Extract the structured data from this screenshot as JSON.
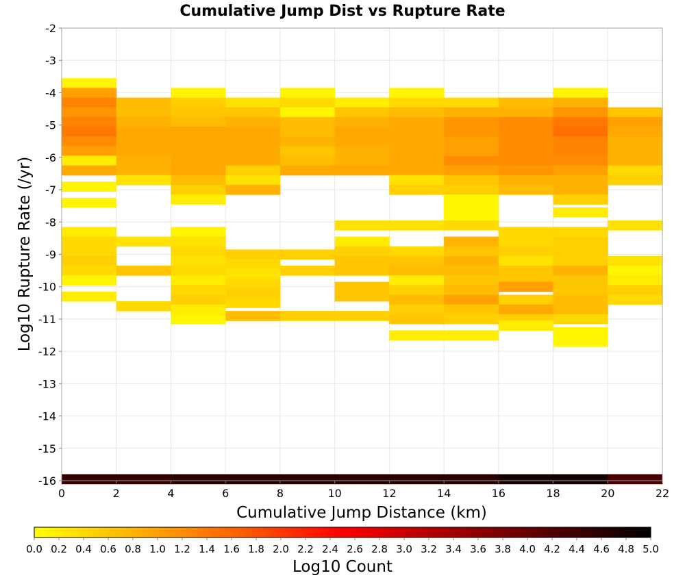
{
  "chart_data": {
    "type": "heatmap",
    "title": "Cumulative Jump Dist vs Rupture Rate",
    "xlabel": "Cumulative Jump Distance (km)",
    "ylabel": "Log10 Rupture Rate (/yr)",
    "xlim": [
      0,
      22
    ],
    "ylim": [
      -16,
      -2
    ],
    "x_ticks": [
      "0",
      "2",
      "4",
      "6",
      "8",
      "10",
      "12",
      "14",
      "16",
      "18",
      "20",
      "22"
    ],
    "y_ticks": [
      "-2",
      "-3",
      "-4",
      "-5",
      "-6",
      "-7",
      "-8",
      "-9",
      "-10",
      "-11",
      "-12",
      "-13",
      "-14",
      "-15",
      "-16"
    ],
    "x_bin_width": 2,
    "y_bin_height": 0.3,
    "grid": true,
    "colorbar": {
      "label": "Log10 Count",
      "min": 0,
      "max": 5,
      "ticks": [
        "0.0",
        "0.2",
        "0.4",
        "0.6",
        "0.8",
        "1.0",
        "1.2",
        "1.4",
        "1.6",
        "1.8",
        "2.0",
        "2.2",
        "2.4",
        "2.6",
        "2.8",
        "3.0",
        "3.2",
        "3.4",
        "3.6",
        "3.8",
        "4.0",
        "4.2",
        "4.4",
        "4.6",
        "4.8",
        "5.0"
      ],
      "colors": [
        "#ffff00",
        "#ff6600",
        "#ff0000",
        "#000000"
      ]
    },
    "columns": [
      {
        "x": [
          0,
          2
        ],
        "cells": [
          [
            -3.7,
            0.1
          ],
          [
            -4.0,
            1.0
          ],
          [
            -4.3,
            1.3
          ],
          [
            -4.6,
            1.1
          ],
          [
            -4.9,
            1.3
          ],
          [
            -5.2,
            1.4
          ],
          [
            -5.5,
            1.2
          ],
          [
            -5.8,
            1.0
          ],
          [
            -6.1,
            0.2
          ],
          [
            -6.4,
            0.9
          ],
          [
            -6.9,
            0.1
          ],
          [
            -7.4,
            0.1
          ],
          [
            -8.3,
            0.2
          ],
          [
            -8.6,
            0.4
          ],
          [
            -8.9,
            0.4
          ],
          [
            -9.2,
            0.5
          ],
          [
            -9.5,
            0.4
          ],
          [
            -9.8,
            0.1
          ],
          [
            -10.3,
            0.2
          ],
          [
            -15.95,
            4.5
          ]
        ]
      },
      {
        "x": [
          2,
          4
        ],
        "cells": [
          [
            -4.3,
            0.7
          ],
          [
            -4.6,
            0.7
          ],
          [
            -4.9,
            0.8
          ],
          [
            -5.2,
            0.9
          ],
          [
            -5.5,
            0.9
          ],
          [
            -5.8,
            0.9
          ],
          [
            -6.1,
            0.8
          ],
          [
            -6.4,
            0.8
          ],
          [
            -6.7,
            0.3
          ],
          [
            -8.6,
            0.3
          ],
          [
            -9.5,
            0.6
          ],
          [
            -10.6,
            0.4
          ],
          [
            -15.95,
            4.5
          ]
        ]
      },
      {
        "x": [
          4,
          6
        ],
        "cells": [
          [
            -4.0,
            0.1
          ],
          [
            -4.3,
            0.5
          ],
          [
            -4.6,
            0.6
          ],
          [
            -4.9,
            0.7
          ],
          [
            -5.2,
            0.9
          ],
          [
            -5.5,
            0.9
          ],
          [
            -5.8,
            0.9
          ],
          [
            -6.1,
            0.9
          ],
          [
            -6.4,
            0.9
          ],
          [
            -6.7,
            0.7
          ],
          [
            -7.0,
            0.5
          ],
          [
            -7.3,
            0.2
          ],
          [
            -8.3,
            0.1
          ],
          [
            -8.6,
            0.3
          ],
          [
            -8.9,
            0.4
          ],
          [
            -9.2,
            0.3
          ],
          [
            -9.5,
            0.4
          ],
          [
            -9.8,
            0.2
          ],
          [
            -10.1,
            0.4
          ],
          [
            -10.4,
            0.5
          ],
          [
            -10.7,
            0.2
          ],
          [
            -11.0,
            0.1
          ],
          [
            -15.95,
            4.6
          ]
        ]
      },
      {
        "x": [
          6,
          8
        ],
        "cells": [
          [
            -4.3,
            0.3
          ],
          [
            -4.6,
            0.6
          ],
          [
            -4.9,
            0.8
          ],
          [
            -5.2,
            0.9
          ],
          [
            -5.5,
            0.9
          ],
          [
            -5.8,
            0.9
          ],
          [
            -6.1,
            0.9
          ],
          [
            -6.4,
            0.5
          ],
          [
            -6.7,
            0.3
          ],
          [
            -7.0,
            0.8
          ],
          [
            -9.0,
            0.5
          ],
          [
            -9.3,
            0.4
          ],
          [
            -9.6,
            0.3
          ],
          [
            -9.9,
            0.4
          ],
          [
            -10.2,
            0.5
          ],
          [
            -10.5,
            0.4
          ],
          [
            -10.9,
            0.7
          ],
          [
            -15.95,
            4.6
          ]
        ]
      },
      {
        "x": [
          8,
          10
        ],
        "cells": [
          [
            -4.0,
            0.1
          ],
          [
            -4.3,
            0.4
          ],
          [
            -4.6,
            0.1
          ],
          [
            -4.9,
            0.7
          ],
          [
            -5.2,
            0.7
          ],
          [
            -5.5,
            0.8
          ],
          [
            -5.8,
            0.6
          ],
          [
            -6.1,
            0.7
          ],
          [
            -6.4,
            0.9
          ],
          [
            -9.0,
            0.5
          ],
          [
            -9.5,
            0.5
          ],
          [
            -10.9,
            0.5
          ],
          [
            -15.95,
            4.6
          ]
        ]
      },
      {
        "x": [
          10,
          12
        ],
        "cells": [
          [
            -4.3,
            0.2
          ],
          [
            -4.6,
            0.6
          ],
          [
            -4.9,
            0.8
          ],
          [
            -5.2,
            0.9
          ],
          [
            -5.5,
            0.9
          ],
          [
            -5.8,
            0.8
          ],
          [
            -6.1,
            0.8
          ],
          [
            -6.4,
            0.9
          ],
          [
            -8.1,
            0.3
          ],
          [
            -8.6,
            0.2
          ],
          [
            -8.9,
            0.5
          ],
          [
            -9.2,
            0.6
          ],
          [
            -9.5,
            0.6
          ],
          [
            -10.0,
            0.6
          ],
          [
            -10.3,
            0.6
          ],
          [
            -10.9,
            0.5
          ],
          [
            -15.95,
            4.6
          ]
        ]
      },
      {
        "x": [
          12,
          14
        ],
        "cells": [
          [
            -4.0,
            0.1
          ],
          [
            -4.3,
            0.4
          ],
          [
            -4.6,
            0.7
          ],
          [
            -4.9,
            0.9
          ],
          [
            -5.2,
            0.9
          ],
          [
            -5.5,
            0.9
          ],
          [
            -5.8,
            0.9
          ],
          [
            -6.1,
            0.9
          ],
          [
            -6.4,
            0.9
          ],
          [
            -6.7,
            0.3
          ],
          [
            -7.0,
            0.5
          ],
          [
            -8.1,
            0.3
          ],
          [
            -8.9,
            0.4
          ],
          [
            -9.2,
            0.6
          ],
          [
            -9.5,
            0.7
          ],
          [
            -9.8,
            0.2
          ],
          [
            -10.1,
            0.5
          ],
          [
            -10.4,
            0.7
          ],
          [
            -10.7,
            0.5
          ],
          [
            -11.0,
            0.6
          ],
          [
            -11.5,
            0.2
          ],
          [
            -15.95,
            4.6
          ]
        ]
      },
      {
        "x": [
          14,
          16
        ],
        "cells": [
          [
            -4.3,
            0.4
          ],
          [
            -4.6,
            0.8
          ],
          [
            -4.9,
            1.1
          ],
          [
            -5.2,
            1.1
          ],
          [
            -5.5,
            1.0
          ],
          [
            -5.8,
            1.0
          ],
          [
            -6.1,
            1.2
          ],
          [
            -6.4,
            1.0
          ],
          [
            -6.7,
            0.6
          ],
          [
            -7.0,
            0.5
          ],
          [
            -7.3,
            0.1
          ],
          [
            -7.6,
            0.1
          ],
          [
            -7.9,
            0.1
          ],
          [
            -8.1,
            0.4
          ],
          [
            -8.6,
            0.8
          ],
          [
            -8.9,
            0.6
          ],
          [
            -9.2,
            0.8
          ],
          [
            -9.5,
            0.7
          ],
          [
            -9.8,
            0.6
          ],
          [
            -10.1,
            0.7
          ],
          [
            -10.4,
            1.0
          ],
          [
            -10.7,
            0.6
          ],
          [
            -11.0,
            0.5
          ],
          [
            -11.5,
            0.2
          ],
          [
            -15.95,
            4.6
          ]
        ]
      },
      {
        "x": [
          16,
          18
        ],
        "cells": [
          [
            -4.3,
            0.7
          ],
          [
            -4.6,
            0.8
          ],
          [
            -4.9,
            1.2
          ],
          [
            -5.2,
            1.2
          ],
          [
            -5.5,
            1.2
          ],
          [
            -5.8,
            1.2
          ],
          [
            -6.1,
            1.2
          ],
          [
            -6.4,
            1.1
          ],
          [
            -6.7,
            0.8
          ],
          [
            -7.0,
            0.7
          ],
          [
            -8.3,
            0.4
          ],
          [
            -8.6,
            0.4
          ],
          [
            -8.9,
            0.5
          ],
          [
            -9.2,
            0.3
          ],
          [
            -9.5,
            0.6
          ],
          [
            -9.8,
            0.6
          ],
          [
            -10.0,
            1.0
          ],
          [
            -10.4,
            0.5
          ],
          [
            -10.7,
            0.9
          ],
          [
            -11.0,
            0.5
          ],
          [
            -11.2,
            0.2
          ],
          [
            -15.95,
            4.8
          ]
        ]
      },
      {
        "x": [
          18,
          20
        ],
        "cells": [
          [
            -4.0,
            0.1
          ],
          [
            -4.3,
            0.8
          ],
          [
            -4.6,
            1.1
          ],
          [
            -4.9,
            1.4
          ],
          [
            -5.2,
            1.5
          ],
          [
            -5.5,
            1.3
          ],
          [
            -5.8,
            1.3
          ],
          [
            -6.1,
            1.2
          ],
          [
            -6.4,
            1.0
          ],
          [
            -6.7,
            0.8
          ],
          [
            -7.0,
            0.8
          ],
          [
            -7.3,
            0.5
          ],
          [
            -7.7,
            0.2
          ],
          [
            -8.3,
            0.4
          ],
          [
            -8.6,
            0.5
          ],
          [
            -8.9,
            0.5
          ],
          [
            -9.2,
            0.5
          ],
          [
            -9.5,
            0.8
          ],
          [
            -9.8,
            0.6
          ],
          [
            -10.1,
            0.6
          ],
          [
            -10.4,
            0.7
          ],
          [
            -10.7,
            0.7
          ],
          [
            -11.0,
            0.4
          ],
          [
            -11.4,
            0.1
          ],
          [
            -11.7,
            0.1
          ],
          [
            -15.95,
            4.8
          ]
        ]
      },
      {
        "x": [
          20,
          22
        ],
        "cells": [
          [
            -4.6,
            0.6
          ],
          [
            -4.9,
            1.0
          ],
          [
            -5.2,
            0.9
          ],
          [
            -5.5,
            0.8
          ],
          [
            -5.8,
            0.8
          ],
          [
            -6.1,
            0.8
          ],
          [
            -6.4,
            0.4
          ],
          [
            -6.7,
            0.5
          ],
          [
            -8.1,
            0.3
          ],
          [
            -9.2,
            0.3
          ],
          [
            -9.5,
            0.1
          ],
          [
            -9.8,
            0.2
          ],
          [
            -10.1,
            0.5
          ],
          [
            -10.4,
            0.4
          ],
          [
            -15.95,
            4.3
          ]
        ]
      }
    ]
  }
}
